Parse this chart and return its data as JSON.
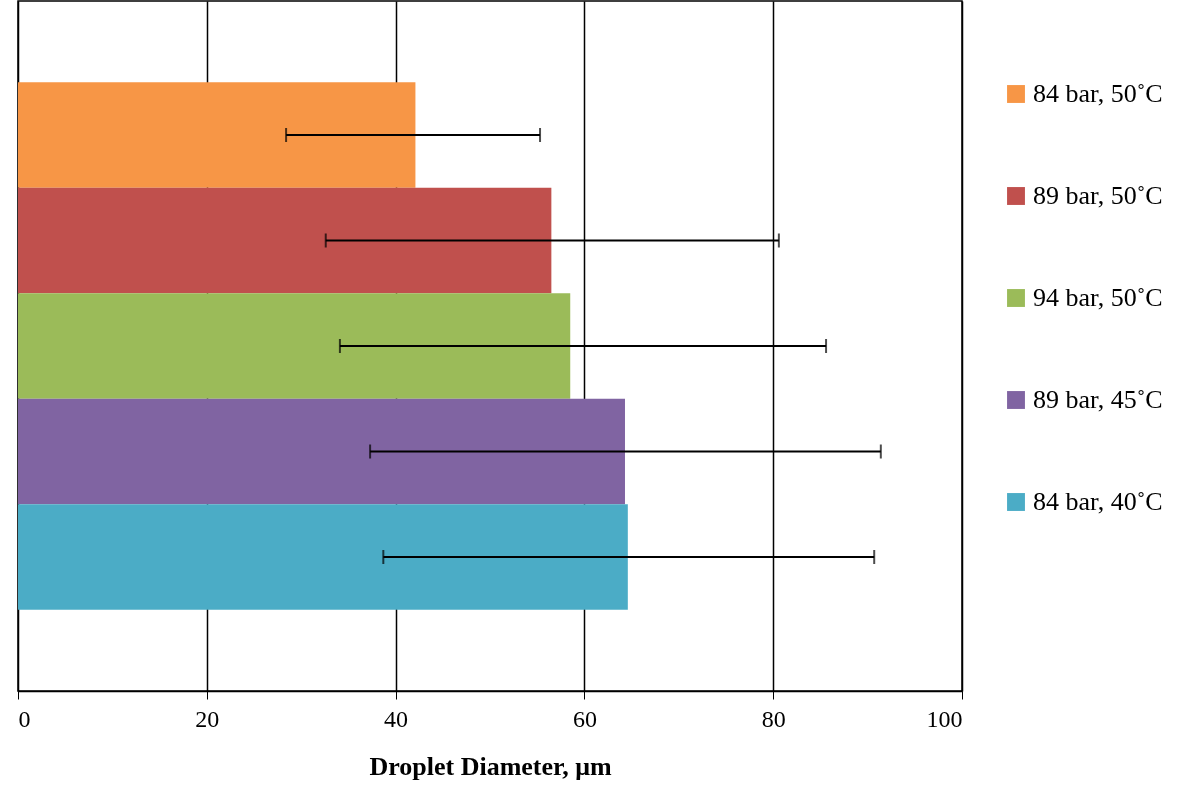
{
  "chart_data": {
    "type": "bar",
    "orientation": "horizontal",
    "xlabel": "Droplet Diameter, μm",
    "categories": [
      null
    ],
    "series": [
      {
        "name": "84 bar, 50˚C",
        "color": "#f79646",
        "values": [
          42.1
        ],
        "errors": [
          [
            28.4,
            55.3
          ]
        ]
      },
      {
        "name": "89 bar, 50˚C",
        "color": "#c0504d",
        "values": [
          56.5
        ],
        "errors": [
          [
            32.6,
            80.6
          ]
        ]
      },
      {
        "name": "94 bar, 50˚C",
        "color": "#9bbb59",
        "values": [
          58.5
        ],
        "errors": [
          [
            34.1,
            85.6
          ]
        ]
      },
      {
        "name": "89 bar, 45˚C",
        "color": "#8064a2",
        "values": [
          64.3
        ],
        "errors": [
          [
            37.3,
            91.4
          ]
        ]
      },
      {
        "name": "84 bar, 40˚C",
        "color": "#4bacc6",
        "values": [
          64.6
        ],
        "errors": [
          [
            38.7,
            90.7
          ]
        ]
      }
    ],
    "xlim": [
      0,
      100
    ],
    "xticks": [
      0,
      20,
      40,
      60,
      80,
      100
    ],
    "grid": "x",
    "legend": "right"
  }
}
